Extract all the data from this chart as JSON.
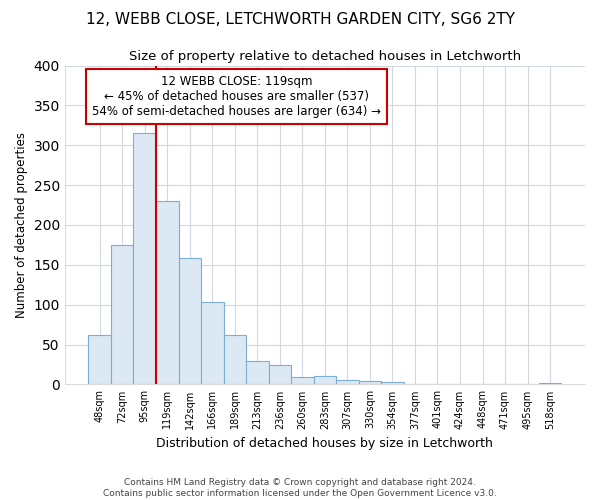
{
  "title1": "12, WEBB CLOSE, LETCHWORTH GARDEN CITY, SG6 2TY",
  "title2": "Size of property relative to detached houses in Letchworth",
  "xlabel": "Distribution of detached houses by size in Letchworth",
  "ylabel": "Number of detached properties",
  "categories": [
    "48sqm",
    "72sqm",
    "95sqm",
    "119sqm",
    "142sqm",
    "166sqm",
    "189sqm",
    "213sqm",
    "236sqm",
    "260sqm",
    "283sqm",
    "307sqm",
    "330sqm",
    "354sqm",
    "377sqm",
    "401sqm",
    "424sqm",
    "448sqm",
    "471sqm",
    "495sqm",
    "518sqm"
  ],
  "values": [
    62,
    175,
    315,
    230,
    158,
    103,
    62,
    29,
    25,
    9,
    11,
    6,
    4,
    3,
    1,
    1,
    1,
    0,
    0,
    1,
    2
  ],
  "bar_color": "#dce8f3",
  "bar_edgecolor": "#7bafd4",
  "vline_color": "#cc0000",
  "annotation_box_text": "12 WEBB CLOSE: 119sqm\n← 45% of detached houses are smaller (537)\n54% of semi-detached houses are larger (634) →",
  "annotation_box_edgecolor": "#cc0000",
  "annotation_box_facecolor": "white",
  "background_color": "#ffffff",
  "grid_color": "#d0d8e4",
  "footer1": "Contains HM Land Registry data © Crown copyright and database right 2024.",
  "footer2": "Contains public sector information licensed under the Open Government Licence v3.0.",
  "ylim": [
    0,
    400
  ],
  "yticks": [
    0,
    50,
    100,
    150,
    200,
    250,
    300,
    350,
    400
  ],
  "vline_index": 3,
  "title1_fontsize": 11,
  "title2_fontsize": 9.5
}
